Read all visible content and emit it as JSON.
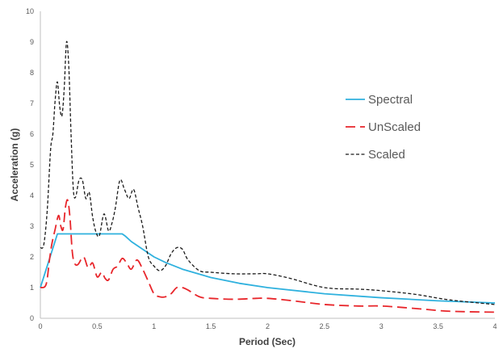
{
  "chart_data": {
    "type": "line",
    "xlabel": "Period (Sec)",
    "ylabel": "Acceleration (g)",
    "xlim": [
      0,
      4
    ],
    "ylim": [
      0,
      10
    ],
    "x_ticks": [
      0,
      0.5,
      1,
      1.5,
      2,
      2.5,
      3,
      3.5,
      4
    ],
    "x_tick_labels": [
      "0",
      "0.5",
      "1",
      "1.5",
      "2",
      "2.5",
      "3",
      "3.5",
      "4"
    ],
    "y_ticks": [
      0,
      1,
      2,
      3,
      4,
      5,
      6,
      7,
      8,
      9,
      10
    ],
    "y_tick_labels": [
      "0",
      "1",
      "2",
      "3",
      "4",
      "5",
      "6",
      "7",
      "8",
      "9",
      "10"
    ],
    "grid": false,
    "legend": {
      "position": "right"
    },
    "series": [
      {
        "name": "Spectral",
        "color": "#2fb1de",
        "dash": "solid",
        "x": [
          0,
          0.15,
          0.72,
          0.75,
          0.8,
          0.9,
          1.0,
          1.1,
          1.25,
          1.5,
          1.75,
          2.0,
          2.5,
          3.0,
          3.5,
          4.0
        ],
        "y": [
          1.0,
          2.75,
          2.75,
          2.67,
          2.5,
          2.25,
          2.0,
          1.82,
          1.6,
          1.33,
          1.14,
          1.0,
          0.8,
          0.67,
          0.57,
          0.5
        ]
      },
      {
        "name": "UnScaled",
        "color": "#e8262b",
        "dash": "long-dash",
        "x": [
          0,
          0.05,
          0.08,
          0.1,
          0.13,
          0.16,
          0.18,
          0.2,
          0.22,
          0.24,
          0.26,
          0.28,
          0.3,
          0.33,
          0.38,
          0.42,
          0.46,
          0.5,
          0.54,
          0.57,
          0.6,
          0.64,
          0.68,
          0.72,
          0.76,
          0.8,
          0.85,
          0.9,
          0.95,
          1.0,
          1.05,
          1.1,
          1.15,
          1.2,
          1.25,
          1.3,
          1.4,
          1.5,
          1.7,
          1.9,
          2.0,
          2.2,
          2.5,
          2.8,
          3.0,
          3.3,
          3.6,
          4.0
        ],
        "y": [
          1.0,
          1.1,
          1.9,
          2.4,
          2.9,
          3.35,
          3.0,
          2.9,
          3.6,
          3.85,
          3.3,
          2.2,
          1.8,
          1.75,
          2.0,
          1.65,
          1.8,
          1.35,
          1.5,
          1.3,
          1.25,
          1.6,
          1.7,
          1.95,
          1.8,
          1.6,
          1.9,
          1.6,
          1.2,
          0.8,
          0.7,
          0.7,
          0.8,
          1.0,
          1.0,
          0.92,
          0.7,
          0.65,
          0.62,
          0.65,
          0.65,
          0.58,
          0.45,
          0.4,
          0.4,
          0.32,
          0.23,
          0.2
        ]
      },
      {
        "name": "Scaled",
        "color": "#1a1a1a",
        "dash": "short-dash",
        "x": [
          0,
          0.03,
          0.06,
          0.09,
          0.11,
          0.13,
          0.15,
          0.17,
          0.19,
          0.21,
          0.23,
          0.25,
          0.27,
          0.29,
          0.31,
          0.34,
          0.37,
          0.4,
          0.43,
          0.46,
          0.49,
          0.52,
          0.56,
          0.6,
          0.63,
          0.66,
          0.7,
          0.74,
          0.78,
          0.82,
          0.86,
          0.9,
          0.95,
          1.0,
          1.05,
          1.1,
          1.15,
          1.2,
          1.25,
          1.3,
          1.4,
          1.5,
          1.7,
          1.9,
          2.0,
          2.2,
          2.5,
          2.8,
          3.0,
          3.3,
          3.6,
          4.0
        ],
        "y": [
          2.3,
          2.4,
          3.5,
          5.5,
          6.0,
          7.1,
          7.7,
          6.9,
          6.6,
          7.5,
          9.0,
          8.2,
          6.0,
          4.2,
          3.95,
          4.5,
          4.5,
          3.9,
          4.1,
          3.3,
          2.8,
          2.7,
          3.4,
          2.85,
          3.1,
          3.6,
          4.5,
          4.2,
          3.9,
          4.2,
          3.6,
          3.0,
          2.0,
          1.7,
          1.55,
          1.7,
          2.1,
          2.3,
          2.25,
          1.9,
          1.55,
          1.5,
          1.45,
          1.45,
          1.45,
          1.3,
          1.0,
          0.95,
          0.9,
          0.78,
          0.6,
          0.45
        ]
      }
    ]
  }
}
